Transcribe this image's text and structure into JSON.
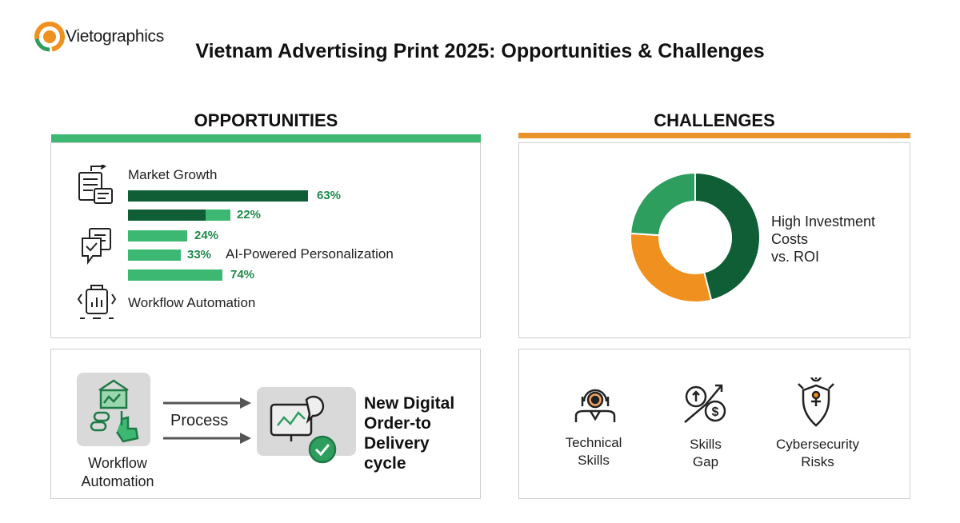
{
  "brand": {
    "name": "Vietographics"
  },
  "title": "Vietnam Advertising Print 2025: Opportunities & Challenges",
  "opportunities": {
    "heading": "OPPORTUNITIES",
    "items": [
      {
        "label": "Market Growth",
        "icon": "report-document-icon"
      },
      {
        "label": "AI-Powered Personalization",
        "icon": "checklist-chat-icon"
      },
      {
        "label": "Workflow Automation",
        "icon": "automation-chart-icon"
      }
    ],
    "bars": [
      {
        "value": 63,
        "label": "63%"
      },
      {
        "value": 22,
        "label": "22%"
      },
      {
        "value": 24,
        "label": "24%"
      },
      {
        "value": 33,
        "label": "33%"
      },
      {
        "value": 74,
        "label": "74%"
      }
    ]
  },
  "challenges": {
    "heading": "CHALLENGES",
    "donut_label": [
      "High Investment",
      "Costs",
      "vs. ROI"
    ],
    "items": [
      {
        "lines": [
          "Technical",
          "Skills"
        ],
        "icon": "technician-icon"
      },
      {
        "lines": [
          "Skills",
          "Gap"
        ],
        "icon": "skills-gap-money-icon"
      },
      {
        "lines": [
          "Cybersecurity",
          "Risks"
        ],
        "icon": "cybersecurity-shield-icon"
      }
    ]
  },
  "workflow": {
    "source_label": [
      "Workflow",
      "Automation"
    ],
    "process_label": "Process",
    "result_label": [
      "New Digital",
      "Order-to",
      "Delivery",
      "cycle"
    ]
  },
  "colors": {
    "dark_green": "#0f5e36",
    "mid_green": "#2e9e5e",
    "light_green": "#3db873",
    "orange": "#f0901f",
    "accent_orange": "#e8922a"
  },
  "chart_data": {
    "type": "pie",
    "categories": [
      "",
      "",
      ""
    ],
    "values": [
      46,
      30,
      24
    ],
    "colors": [
      "#0f5e36",
      "#f0901f",
      "#2e9e5e"
    ],
    "title": "",
    "donut": true
  }
}
